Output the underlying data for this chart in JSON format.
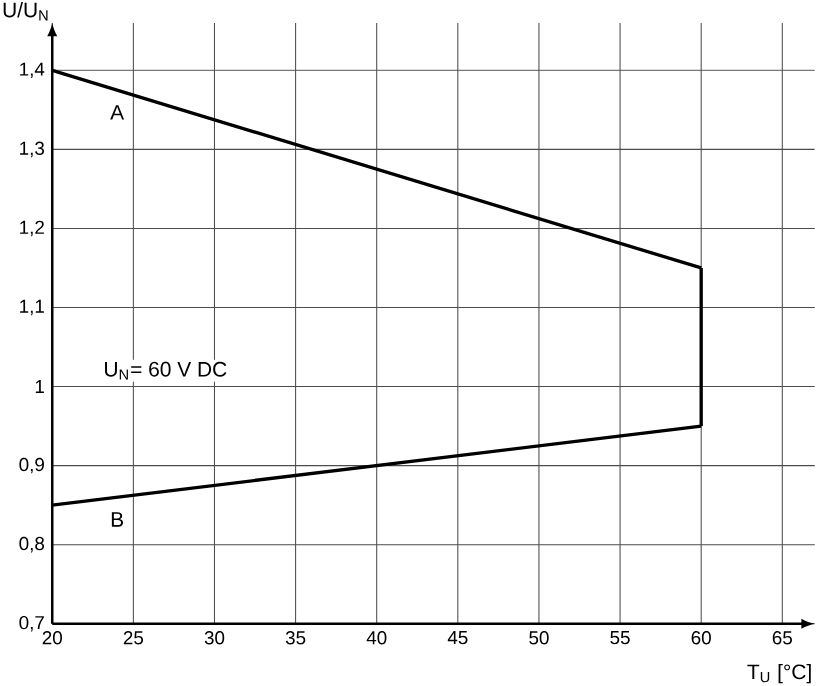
{
  "chart_data": {
    "type": "line",
    "xlabel": "T$_{U}$ [°C]",
    "ylabel": "U/U$_{N}$",
    "annotations": [
      "U$_{N}$= 60 V DC"
    ],
    "series": [
      {
        "name": "A",
        "color": "#000000",
        "values": [
          1.4,
          1.15
        ]
      },
      {
        "name": "B",
        "color": "#000000",
        "values": [
          0.85,
          0.95
        ]
      },
      {
        "color": "#000000",
        "x": [
          60,
          60
        ],
        "values": [
          0.95,
          1.15
        ]
      }
    ],
    "x": [
      20,
      60
    ],
    "xlim": [
      20,
      67
    ],
    "xticks": [
      20,
      25,
      30,
      35,
      40,
      45,
      50,
      55,
      60,
      65
    ],
    "ylim": [
      0.7,
      1.46
    ],
    "yticks": [
      {
        "value": 0.7,
        "label": "0,7"
      },
      {
        "value": 0.8,
        "label": "0,8"
      },
      {
        "value": 0.9,
        "label": "0,9"
      },
      {
        "value": 1,
        "label": "1"
      },
      {
        "value": 1.1,
        "label": "1,1"
      },
      {
        "value": 1.2,
        "label": "1,2"
      },
      {
        "value": 1.3,
        "label": "1,3"
      },
      {
        "value": 1.4,
        "label": "1,4"
      }
    ],
    "grid": true
  }
}
